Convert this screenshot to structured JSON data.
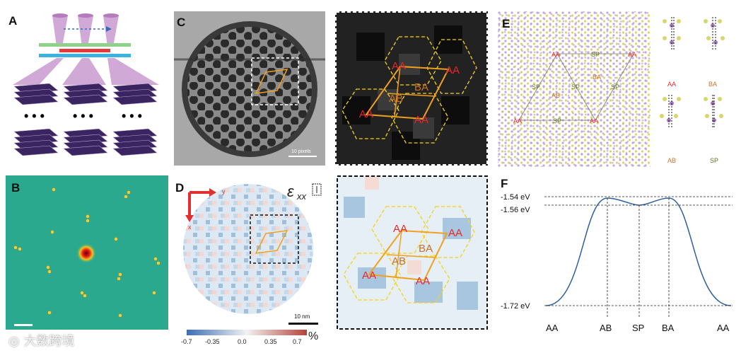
{
  "panels": {
    "a": {
      "label": "A",
      "dots": "• • •"
    },
    "b": {
      "label": "B"
    },
    "c": {
      "label": "C",
      "scale_label": "10 pixels",
      "zoom_labels": {
        "aa1": "AA",
        "aa2": "AA",
        "aa3": "AA",
        "aa4": "AA",
        "ab": "AB",
        "ba": "BA"
      }
    },
    "d": {
      "label": "D",
      "axis_x": "x",
      "axis_y": "y",
      "strain_symbol": "ε",
      "strain_sub": "xx",
      "scale_label": "10 nm",
      "colorbar": {
        "ticks": [
          "-0.7",
          "-0.35",
          "0.0",
          "0.35",
          "0.7"
        ],
        "unit": "%",
        "colors": {
          "low": "#3a6eb3",
          "mid": "#f2f2f2",
          "high": "#b2443a"
        }
      },
      "zoom_labels": {
        "aa1": "AA",
        "aa2": "AA",
        "aa3": "AA",
        "aa4": "AA",
        "ab": "AB",
        "ba": "BA"
      }
    },
    "e": {
      "label": "E",
      "lattice_labels": {
        "aa_tl": "AA",
        "sp_top": "SP",
        "aa_tr": "AA",
        "ba": "BA",
        "sp_left": "SP",
        "ab": "AB",
        "sp_mid": "SP",
        "sp_right": "SP",
        "aa_bl": "AA",
        "sp_bot": "SP",
        "aa_br": "AA"
      },
      "stack_labels": {
        "aa": "AA",
        "ba": "BA",
        "ab": "AB",
        "sp": "SP"
      }
    },
    "f": {
      "label": "F",
      "energy_labels": [
        "-1.54 eV",
        "-1.56 eV",
        "-1.72 eV"
      ],
      "x_labels": [
        "AA",
        "AB",
        "SP",
        "BA",
        "AA"
      ],
      "curve_energies_ev": [
        -1.72,
        -1.54,
        -1.56,
        -1.54,
        -1.72
      ]
    }
  },
  "colors": {
    "accent_orange": "#f0a020",
    "label_red": "#e8262a",
    "label_brown": "#c8702a",
    "label_green": "#5a7a1a",
    "dashed_yellow": "#f5d21a"
  },
  "watermark": "大数跨境"
}
